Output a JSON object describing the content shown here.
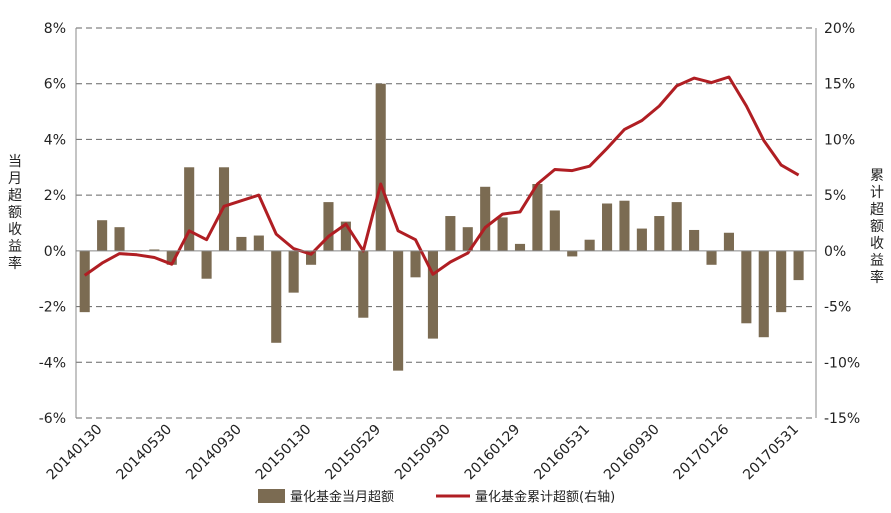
{
  "chart_data": {
    "type": "bar",
    "series": [
      {
        "name": "量化基金当月超额",
        "kind": "bar",
        "axis": "left",
        "color": "#7b6b52",
        "values": [
          -2.2,
          1.1,
          0.85,
          0.0,
          0.05,
          -0.5,
          3.0,
          -1.0,
          3.0,
          0.5,
          0.55,
          -3.3,
          -1.5,
          -0.5,
          1.75,
          1.05,
          -2.4,
          6.0,
          -4.3,
          -0.95,
          -3.15,
          1.25,
          0.85,
          2.3,
          1.2,
          0.25,
          2.4,
          1.45,
          -0.2,
          0.4,
          1.7,
          1.8,
          0.8,
          1.25,
          1.75,
          0.75,
          -0.5,
          0.65,
          -2.6,
          -3.1,
          -2.2,
          -1.05
        ]
      },
      {
        "name": "量化基金累计超额(右轴)",
        "kind": "line",
        "axis": "right",
        "color": "#b01e23",
        "values": [
          -2.2,
          -1.1,
          -0.25,
          -0.35,
          -0.6,
          -1.2,
          1.8,
          1.0,
          4.0,
          4.5,
          5.0,
          1.5,
          0.2,
          -0.3,
          1.3,
          2.4,
          0.0,
          6.0,
          1.8,
          1.0,
          -2.1,
          -1.0,
          -0.2,
          2.1,
          3.3,
          3.5,
          6.0,
          7.3,
          7.2,
          7.6,
          9.2,
          10.9,
          11.7,
          13.0,
          14.8,
          15.5,
          15.1,
          15.6,
          13.0,
          9.9,
          7.7,
          6.8
        ]
      }
    ],
    "x_tick_labels": [
      "20140130",
      "20140530",
      "20140930",
      "20150130",
      "20150529",
      "20150930",
      "20160129",
      "20160531",
      "20160930",
      "20170126",
      "20170531"
    ],
    "x_tick_every": 4,
    "y_left": {
      "min": -6,
      "max": 8,
      "step": 2,
      "tick_labels": [
        "-6%",
        "-4%",
        "-2%",
        "0%",
        "2%",
        "4%",
        "6%",
        "8%"
      ]
    },
    "y_right": {
      "min": -15,
      "max": 20,
      "step": 5,
      "tick_labels": [
        "-15%",
        "-10%",
        "-5%",
        "0%",
        "5%",
        "10%",
        "15%",
        "20%"
      ]
    },
    "ylabel_left": "当月超额收益率",
    "ylabel_right": "累计超额收益率",
    "grid": true,
    "legend_position": "bottom"
  }
}
